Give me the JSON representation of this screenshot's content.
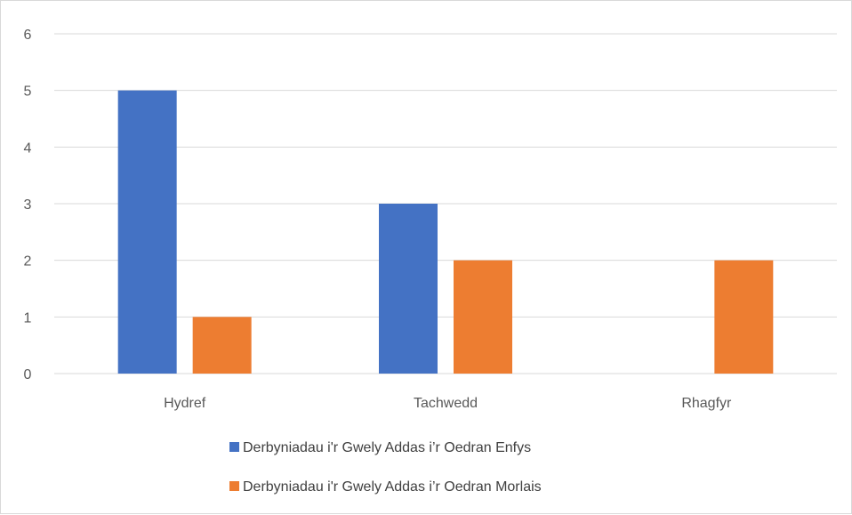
{
  "chart_data": {
    "type": "bar",
    "categories": [
      "Hydref",
      "Tachwedd",
      "Rhagfyr"
    ],
    "series": [
      {
        "name": "Derbyniadau i'r Gwely Addas i’r Oedran Enfys",
        "values": [
          5,
          3,
          0
        ],
        "color": "#4472C4"
      },
      {
        "name": "Derbyniadau i'r Gwely Addas i’r Oedran Morlais",
        "values": [
          1,
          2,
          2
        ],
        "color": "#ED7D31"
      }
    ],
    "ylim": [
      0,
      6
    ],
    "yticks": [
      0,
      1,
      2,
      3,
      4,
      5,
      6
    ],
    "grid": true,
    "gridColor": "#d9d9d9",
    "legend": "bottom"
  }
}
